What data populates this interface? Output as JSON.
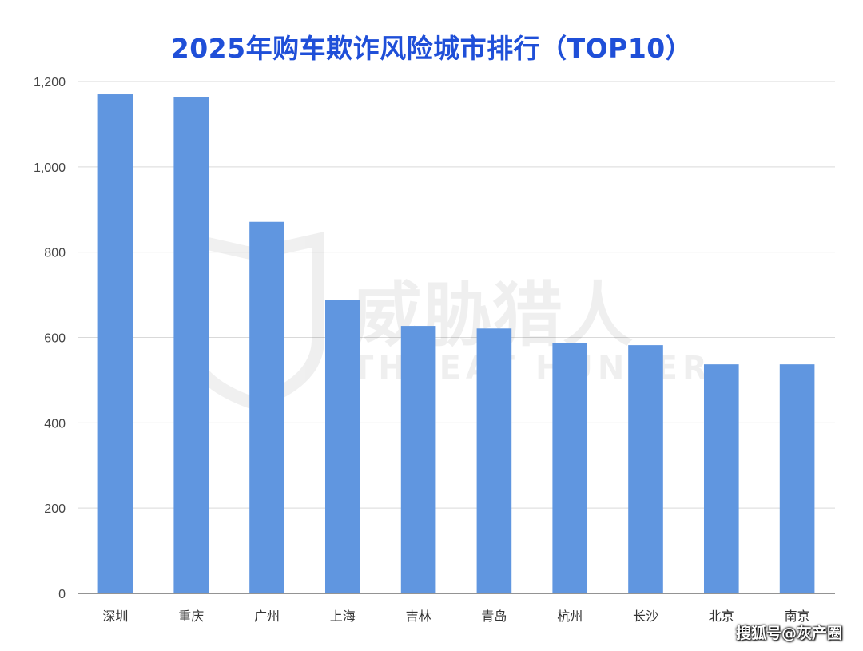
{
  "chart_data": {
    "type": "bar",
    "title": "2025年购车欺诈风险城市排行（TOP10）",
    "categories": [
      "深圳",
      "重庆",
      "广州",
      "上海",
      "吉林",
      "青岛",
      "杭州",
      "长沙",
      "北京",
      "南京"
    ],
    "values": [
      1170,
      1163,
      871,
      688,
      627,
      621,
      586,
      582,
      537,
      537
    ],
    "ylim": [
      0,
      1200
    ],
    "yticks": [
      0,
      200,
      400,
      600,
      800,
      1000,
      1200
    ],
    "ytick_labels": [
      "0",
      "200",
      "400",
      "600",
      "800",
      "1,000",
      "1,200"
    ],
    "grid": true,
    "bar_color": "#6096e0",
    "title_color": "#1f4fd8"
  },
  "watermark": {
    "cn": "威胁猎人",
    "en": "THREAT HUNTER"
  },
  "source_label": "搜狐号@灰产圈"
}
